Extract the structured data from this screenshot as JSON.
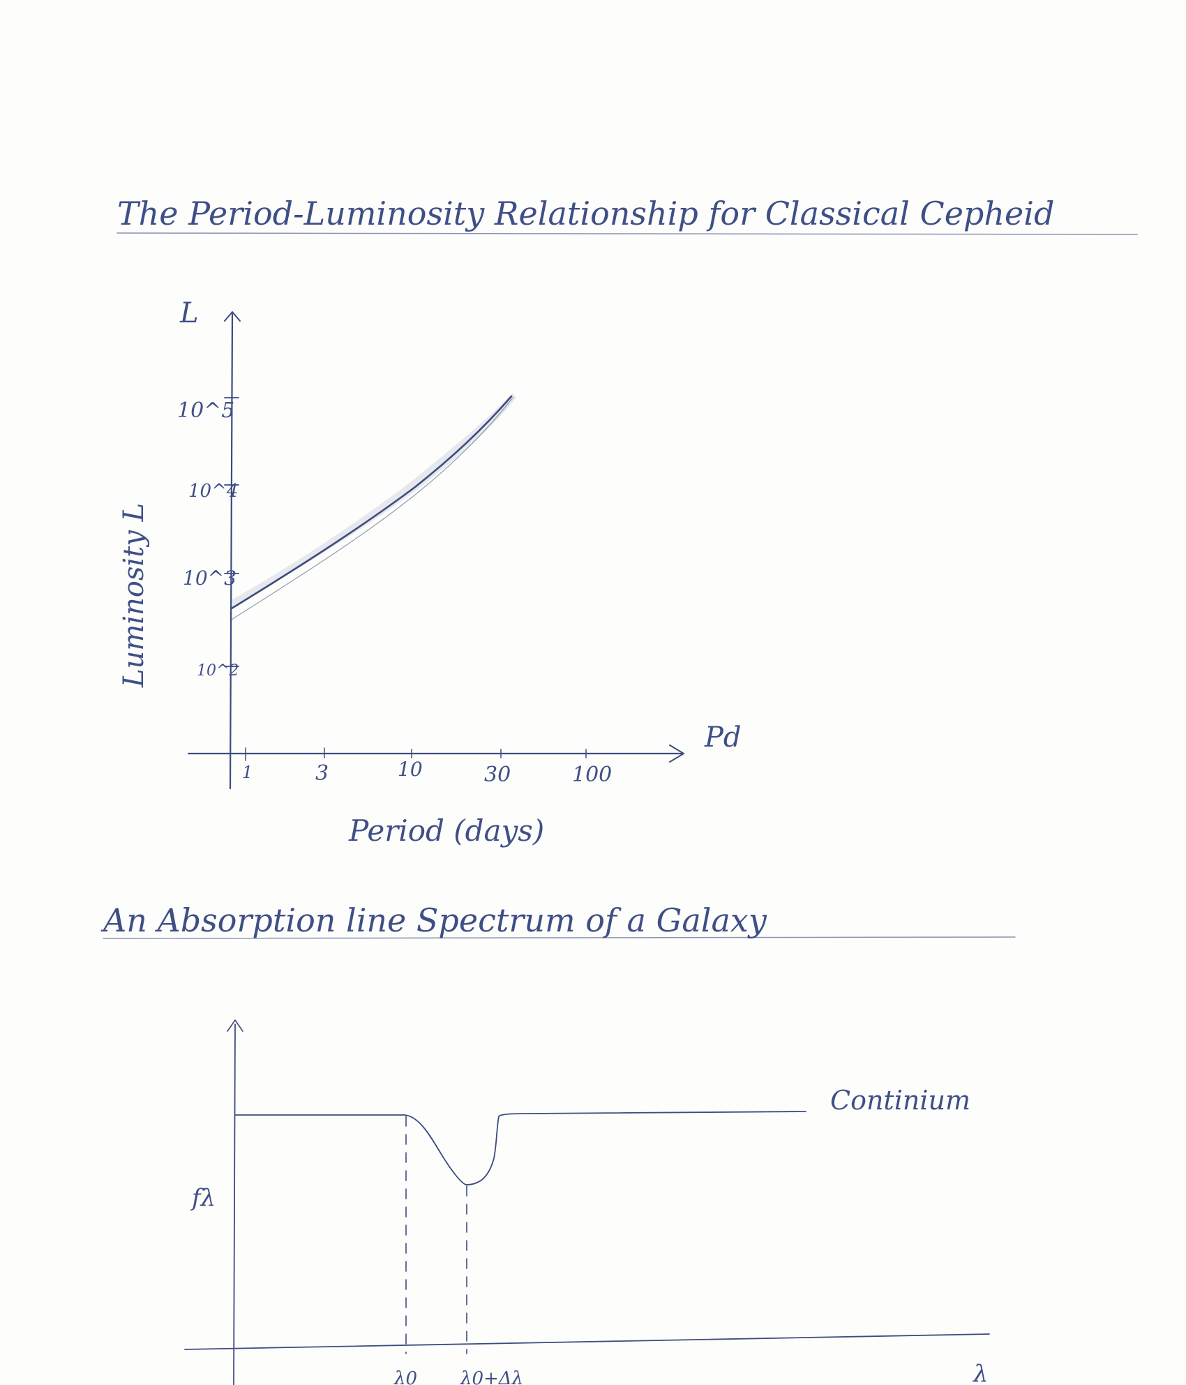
{
  "title_1": "The Period-Luminosity Relationship for Classical Cepheid",
  "chart_1": {
    "y_axis_letter": "L",
    "y_label": "Luminosity L",
    "x_axis_letter": "Pd",
    "x_label": "Period (days)",
    "y_ticks": [
      "10^2",
      "10^3",
      "10^4",
      "10^5"
    ],
    "x_ticks": [
      "1",
      "3",
      "10",
      "30",
      "100"
    ]
  },
  "title_2": "An Absorption line Spectrum of a Galaxy",
  "chart_2": {
    "y_label": "fλ",
    "continuum_label": "Continium",
    "x_axis_letter": "λ",
    "x_ticks": [
      "λ0",
      "λ0+Δλ"
    ]
  },
  "chart_data": [
    {
      "type": "line",
      "title": "The Period-Luminosity Relationship for Classical Cepheid",
      "xlabel": "Period (days)",
      "ylabel": "Luminosity L",
      "x_scale": "log",
      "y_scale": "log",
      "x_ticks": [
        1,
        3,
        10,
        30,
        100
      ],
      "y_ticks": [
        100,
        1000,
        10000,
        100000
      ],
      "series": [
        {
          "x": [
            1,
            3,
            10,
            30,
            40
          ],
          "y": [
            330,
            1200,
            5000,
            30000,
            90000
          ]
        }
      ]
    },
    {
      "type": "line",
      "title": "An Absorption line Spectrum of a Galaxy",
      "xlabel": "λ",
      "ylabel": "fλ",
      "annotations": [
        "Continium",
        "λ0",
        "λ0+Δλ"
      ]
    }
  ],
  "colors": {
    "ink": "#3d4c7e",
    "paper": "#fdfdfc"
  }
}
